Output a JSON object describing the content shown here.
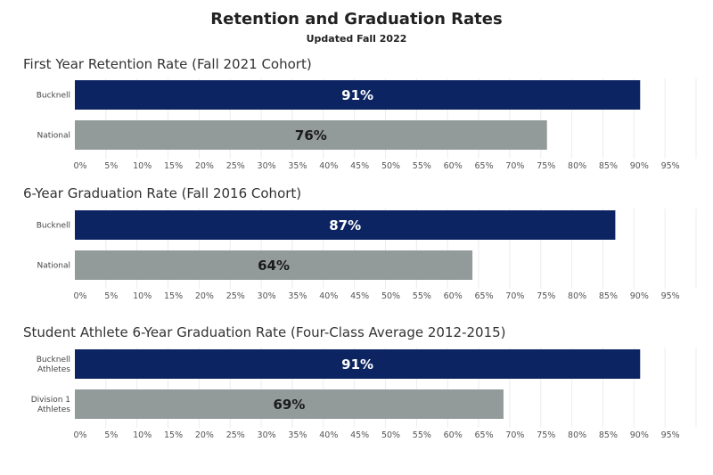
{
  "header": {
    "title": "Retention and Graduation Rates",
    "subtitle": "Updated Fall 2022"
  },
  "colors": {
    "primary_bar": "#0c2461",
    "secondary_bar": "#939a9a",
    "primary_label": "#ffffff",
    "secondary_label": "#1a1a1a",
    "gridline": "#ececec"
  },
  "chart_data": [
    {
      "type": "bar",
      "orientation": "horizontal",
      "title": "First Year Retention Rate (Fall 2021 Cohort)",
      "categories": [
        [
          "Bucknell"
        ],
        [
          "National"
        ]
      ],
      "values": [
        91,
        76
      ],
      "value_labels": [
        "91%",
        "76%"
      ],
      "xlim": [
        0,
        100
      ],
      "x_ticks": [
        "0%",
        "5%",
        "10%",
        "15%",
        "20%",
        "25%",
        "30%",
        "35%",
        "40%",
        "45%",
        "50%",
        "55%",
        "60%",
        "65%",
        "70%",
        "75%",
        "80%",
        "85%",
        "90%",
        "95%"
      ],
      "grid": true
    },
    {
      "type": "bar",
      "orientation": "horizontal",
      "title": "6-Year Graduation Rate (Fall 2016 Cohort)",
      "categories": [
        [
          "Bucknell"
        ],
        [
          "National"
        ]
      ],
      "values": [
        87,
        64
      ],
      "value_labels": [
        "87%",
        "64%"
      ],
      "xlim": [
        0,
        100
      ],
      "x_ticks": [
        "0%",
        "5%",
        "10%",
        "15%",
        "20%",
        "25%",
        "30%",
        "35%",
        "40%",
        "45%",
        "50%",
        "55%",
        "60%",
        "65%",
        "70%",
        "75%",
        "80%",
        "85%",
        "90%",
        "95%"
      ],
      "grid": true
    },
    {
      "type": "bar",
      "orientation": "horizontal",
      "title": "Student Athlete 6-Year Graduation Rate (Four-Class Average 2012-2015)",
      "categories": [
        [
          "Bucknell",
          "Athletes"
        ],
        [
          "Division 1",
          "Athletes"
        ]
      ],
      "values": [
        91,
        69
      ],
      "value_labels": [
        "91%",
        "69%"
      ],
      "xlim": [
        0,
        100
      ],
      "x_ticks": [
        "0%",
        "5%",
        "10%",
        "15%",
        "20%",
        "25%",
        "30%",
        "35%",
        "40%",
        "45%",
        "50%",
        "55%",
        "60%",
        "65%",
        "70%",
        "75%",
        "80%",
        "85%",
        "90%",
        "95%"
      ],
      "grid": true
    }
  ]
}
